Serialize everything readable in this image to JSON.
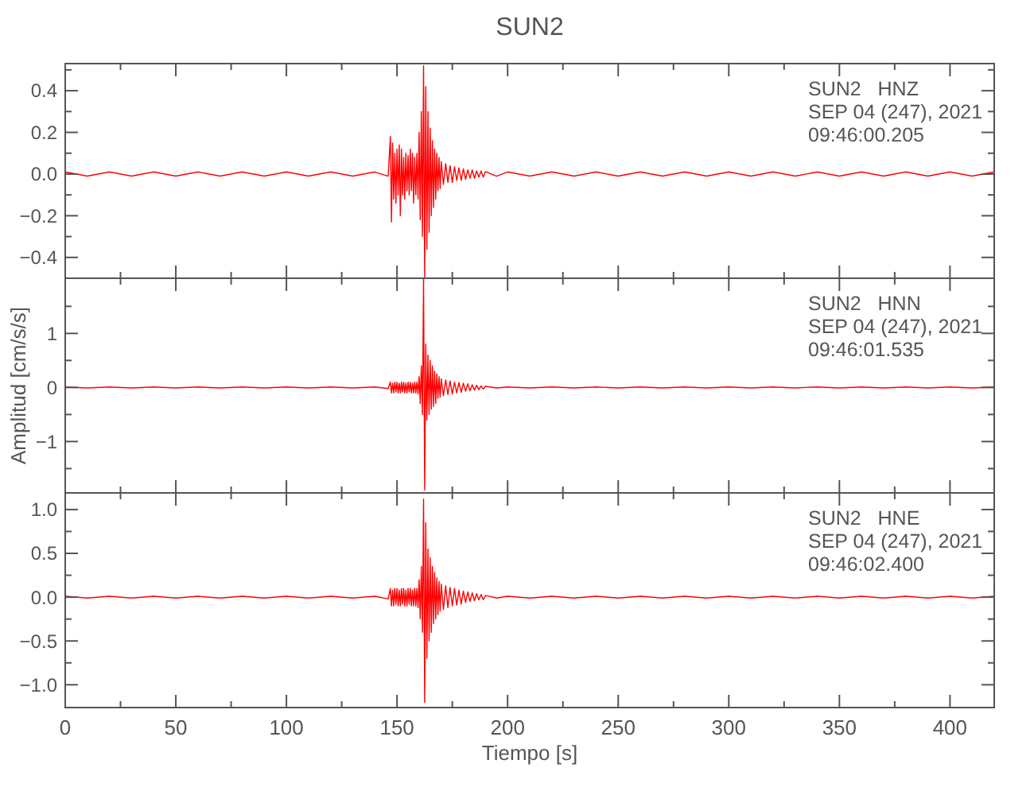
{
  "chart_data": [
    {
      "type": "line",
      "title": "SUN2",
      "annotations": [
        "SUN2   HNZ",
        "SEP 04 (247), 2021",
        "09:46:00.205"
      ],
      "tick_labels": "y",
      "x": [
        0,
        10,
        20,
        30,
        40,
        50,
        60,
        70,
        80,
        90,
        100,
        110,
        120,
        130,
        140,
        146,
        147,
        147.5,
        148,
        148.5,
        149,
        149.5,
        150,
        150.5,
        151,
        151.5,
        152,
        152.5,
        153,
        153.5,
        154,
        154.5,
        155,
        155.5,
        156,
        156.5,
        157,
        157.5,
        158,
        158.5,
        159,
        159.5,
        160,
        160.5,
        161,
        161.5,
        162,
        162.5,
        163,
        163.5,
        164,
        164.5,
        165,
        165.5,
        166,
        166.5,
        167,
        167.5,
        168,
        168.5,
        169,
        169.5,
        170,
        171,
        172,
        173,
        174,
        175,
        176,
        177,
        178,
        179,
        180,
        181,
        182,
        183,
        184,
        185,
        186,
        187,
        188,
        189,
        190,
        195,
        200,
        210,
        220,
        230,
        240,
        250,
        260,
        270,
        280,
        290,
        300,
        310,
        320,
        330,
        340,
        350,
        360,
        370,
        380,
        390,
        400,
        410,
        420
      ],
      "series": [
        {
          "color": "#ff0000",
          "values": [
            0.01,
            -0.01,
            0.01,
            -0.01,
            0.01,
            -0.01,
            0.01,
            -0.01,
            0.01,
            -0.01,
            0.01,
            -0.01,
            0.01,
            -0.01,
            0.01,
            -0.01,
            0.18,
            -0.23,
            0.15,
            -0.12,
            0.1,
            -0.14,
            0.12,
            -0.1,
            0.14,
            -0.2,
            0.12,
            -0.1,
            0.08,
            -0.12,
            0.1,
            -0.08,
            0.09,
            -0.1,
            0.12,
            -0.08,
            0.1,
            -0.14,
            0.08,
            -0.1,
            0.1,
            -0.12,
            0.2,
            -0.22,
            0.3,
            -0.3,
            0.52,
            -0.5,
            0.42,
            -0.36,
            0.3,
            -0.28,
            0.22,
            -0.2,
            0.16,
            -0.16,
            0.12,
            -0.12,
            0.1,
            -0.08,
            0.08,
            -0.07,
            0.06,
            -0.05,
            0.05,
            -0.04,
            0.04,
            -0.04,
            0.035,
            -0.03,
            0.03,
            -0.03,
            0.025,
            -0.025,
            0.02,
            -0.02,
            0.02,
            -0.02,
            0.015,
            -0.015,
            0.015,
            -0.015,
            0.012,
            -0.01,
            0.01,
            -0.01,
            0.01,
            -0.01,
            0.01,
            -0.01,
            0.01,
            -0.01,
            0.01,
            -0.01,
            0.01,
            -0.01,
            0.01,
            -0.01,
            0.01,
            -0.01,
            0.01,
            -0.01,
            0.01,
            -0.01,
            0.01,
            -0.01,
            0.01
          ]
        }
      ],
      "xlim": [
        0,
        420
      ],
      "xticks": [
        0,
        {
          "value": 25,
          "label": null
        },
        50,
        {
          "value": 75,
          "label": null
        },
        100,
        {
          "value": 125,
          "label": null
        },
        150,
        {
          "value": 175,
          "label": null
        },
        200,
        {
          "value": 225,
          "label": null
        },
        250,
        {
          "value": 275,
          "label": null
        },
        300,
        {
          "value": 325,
          "label": null
        },
        350,
        {
          "value": 375,
          "label": null
        },
        400
      ],
      "ylim": [
        -0.5,
        0.53
      ],
      "yticks": [
        {
          "value": -0.5,
          "label": null
        },
        {
          "value": -0.4,
          "label": "−0.4"
        },
        {
          "value": -0.3,
          "label": null
        },
        {
          "value": -0.2,
          "label": "−0.2"
        },
        {
          "value": -0.1,
          "label": null
        },
        {
          "value": 0,
          "label": "0.0"
        },
        {
          "value": 0.1,
          "label": null
        },
        0.2,
        {
          "value": 0.3,
          "label": null
        },
        0.4,
        {
          "value": 0.5,
          "label": null
        }
      ]
    },
    {
      "type": "line",
      "ylabel": "Amplitud [cm/s/s]",
      "annotations": [
        "SUN2   HNN",
        "SEP 04 (247), 2021",
        "09:46:01.535"
      ],
      "tick_labels": "y",
      "x": [
        0,
        10,
        20,
        30,
        40,
        50,
        60,
        70,
        80,
        90,
        100,
        110,
        120,
        130,
        140,
        146,
        147,
        147.5,
        148,
        148.5,
        149,
        149.5,
        150,
        150.5,
        151,
        151.5,
        152,
        152.5,
        153,
        153.5,
        154,
        154.5,
        155,
        155.5,
        156,
        156.5,
        157,
        157.5,
        158,
        158.5,
        159,
        159.5,
        160,
        160.5,
        161,
        161.5,
        162,
        162.5,
        163,
        163.5,
        164,
        164.5,
        165,
        165.5,
        166,
        166.5,
        167,
        167.5,
        168,
        168.5,
        169,
        169.5,
        170,
        171,
        172,
        173,
        174,
        175,
        176,
        177,
        178,
        179,
        180,
        181,
        182,
        183,
        184,
        185,
        186,
        187,
        188,
        189,
        190,
        195,
        200,
        210,
        220,
        230,
        240,
        250,
        260,
        270,
        280,
        290,
        300,
        310,
        320,
        330,
        340,
        350,
        360,
        370,
        380,
        390,
        400,
        410,
        420
      ],
      "series": [
        {
          "color": "#ff0000",
          "values": [
            0.01,
            -0.01,
            0.01,
            -0.01,
            0.01,
            -0.01,
            0.01,
            -0.01,
            0.01,
            -0.01,
            0.01,
            -0.01,
            0.01,
            -0.01,
            0.01,
            -0.02,
            0.1,
            -0.1,
            0.08,
            -0.1,
            0.1,
            -0.08,
            0.1,
            -0.1,
            0.08,
            -0.1,
            0.1,
            -0.08,
            0.1,
            -0.1,
            0.08,
            -0.1,
            0.1,
            -0.08,
            0.1,
            -0.1,
            0.08,
            -0.1,
            0.1,
            -0.1,
            0.1,
            -0.12,
            0.2,
            -0.3,
            0.4,
            -0.5,
            2.0,
            -1.9,
            0.8,
            -0.6,
            0.6,
            -0.5,
            0.5,
            -0.4,
            0.4,
            -0.35,
            0.3,
            -0.3,
            0.25,
            -0.2,
            0.2,
            -0.18,
            0.16,
            -0.15,
            0.14,
            -0.13,
            0.12,
            -0.12,
            0.1,
            -0.1,
            0.09,
            -0.09,
            0.08,
            -0.07,
            0.07,
            -0.06,
            0.05,
            -0.05,
            0.04,
            -0.04,
            0.03,
            -0.03,
            0.02,
            -0.01,
            0.01,
            -0.01,
            0.01,
            -0.01,
            0.01,
            -0.01,
            0.01,
            -0.01,
            0.01,
            -0.01,
            0.01,
            -0.01,
            0.01,
            -0.01,
            0.01,
            -0.01,
            0.01,
            -0.01,
            0.01,
            -0.01,
            0.01,
            -0.01,
            0.01
          ]
        }
      ],
      "xlim": [
        0,
        420
      ],
      "xticks": [
        0,
        {
          "value": 25,
          "label": null
        },
        50,
        {
          "value": 75,
          "label": null
        },
        100,
        {
          "value": 125,
          "label": null
        },
        150,
        {
          "value": 175,
          "label": null
        },
        200,
        {
          "value": 225,
          "label": null
        },
        250,
        {
          "value": 275,
          "label": null
        },
        300,
        {
          "value": 325,
          "label": null
        },
        350,
        {
          "value": 375,
          "label": null
        },
        400
      ],
      "ylim": [
        -1.95,
        2.02
      ],
      "yticks": [
        {
          "value": -1.5,
          "label": null
        },
        {
          "value": -1,
          "label": "−1"
        },
        {
          "value": -0.5,
          "label": null
        },
        0,
        {
          "value": 0.5,
          "label": null
        },
        1,
        {
          "value": 1.5,
          "label": null
        }
      ]
    },
    {
      "type": "line",
      "xlabel": "Tiempo [s]",
      "annotations": [
        "SUN2   HNE",
        "SEP 04 (247), 2021",
        "09:46:02.400"
      ],
      "x": [
        0,
        10,
        20,
        30,
        40,
        50,
        60,
        70,
        80,
        90,
        100,
        110,
        120,
        130,
        140,
        146,
        147,
        147.5,
        148,
        148.5,
        149,
        149.5,
        150,
        150.5,
        151,
        151.5,
        152,
        152.5,
        153,
        153.5,
        154,
        154.5,
        155,
        155.5,
        156,
        156.5,
        157,
        157.5,
        158,
        158.5,
        159,
        159.5,
        160,
        160.5,
        161,
        161.5,
        162,
        162.5,
        163,
        163.5,
        164,
        164.5,
        165,
        165.5,
        166,
        166.5,
        167,
        167.5,
        168,
        168.5,
        169,
        169.5,
        170,
        171,
        172,
        173,
        174,
        175,
        176,
        177,
        178,
        179,
        180,
        181,
        182,
        183,
        184,
        185,
        186,
        187,
        188,
        189,
        190,
        195,
        200,
        210,
        220,
        230,
        240,
        250,
        260,
        270,
        280,
        290,
        300,
        310,
        320,
        330,
        340,
        350,
        360,
        370,
        380,
        390,
        400,
        410,
        420
      ],
      "series": [
        {
          "color": "#ff0000",
          "values": [
            0.01,
            -0.01,
            0.01,
            -0.01,
            0.01,
            -0.01,
            0.01,
            -0.01,
            0.01,
            -0.01,
            0.01,
            -0.01,
            0.01,
            -0.01,
            0.01,
            -0.02,
            0.1,
            -0.1,
            0.08,
            -0.1,
            0.1,
            -0.08,
            0.1,
            -0.1,
            0.08,
            -0.1,
            0.1,
            -0.08,
            0.1,
            -0.1,
            0.08,
            -0.1,
            0.1,
            -0.08,
            0.1,
            -0.1,
            0.08,
            -0.1,
            0.1,
            -0.1,
            0.1,
            -0.12,
            0.2,
            -0.25,
            0.35,
            -0.4,
            1.12,
            -1.2,
            0.85,
            -0.7,
            0.55,
            -0.5,
            0.45,
            -0.4,
            0.35,
            -0.3,
            0.28,
            -0.25,
            0.22,
            -0.2,
            0.18,
            -0.16,
            0.15,
            -0.14,
            0.13,
            -0.12,
            0.11,
            -0.1,
            0.1,
            -0.09,
            0.08,
            -0.08,
            0.07,
            -0.06,
            0.06,
            -0.05,
            0.05,
            -0.04,
            0.04,
            -0.03,
            0.03,
            -0.03,
            0.02,
            -0.01,
            0.01,
            -0.01,
            0.01,
            -0.01,
            0.01,
            -0.01,
            0.01,
            -0.01,
            0.01,
            -0.01,
            0.01,
            -0.01,
            0.01,
            -0.01,
            0.01,
            -0.01,
            0.01,
            -0.01,
            0.01,
            -0.01,
            0.01,
            -0.01,
            0.01
          ]
        }
      ],
      "xlim": [
        0,
        420
      ],
      "xticks": [
        0,
        {
          "value": 25,
          "label": null
        },
        50,
        {
          "value": 75,
          "label": null
        },
        100,
        {
          "value": 125,
          "label": null
        },
        150,
        {
          "value": 175,
          "label": null
        },
        200,
        {
          "value": 225,
          "label": null
        },
        250,
        {
          "value": 275,
          "label": null
        },
        300,
        {
          "value": 325,
          "label": null
        },
        350,
        {
          "value": 375,
          "label": null
        },
        400
      ],
      "ylim": [
        -1.26,
        1.19
      ],
      "yticks": [
        {
          "value": -1,
          "label": "−1.0"
        },
        {
          "value": -0.75,
          "label": null
        },
        {
          "value": -0.5,
          "label": "−0.5"
        },
        {
          "value": -0.25,
          "label": null
        },
        {
          "value": 0,
          "label": "0.0"
        },
        {
          "value": 0.25,
          "label": null
        },
        0.5,
        {
          "value": 0.75,
          "label": null
        },
        {
          "value": 1,
          "label": "1.0"
        }
      ]
    }
  ]
}
